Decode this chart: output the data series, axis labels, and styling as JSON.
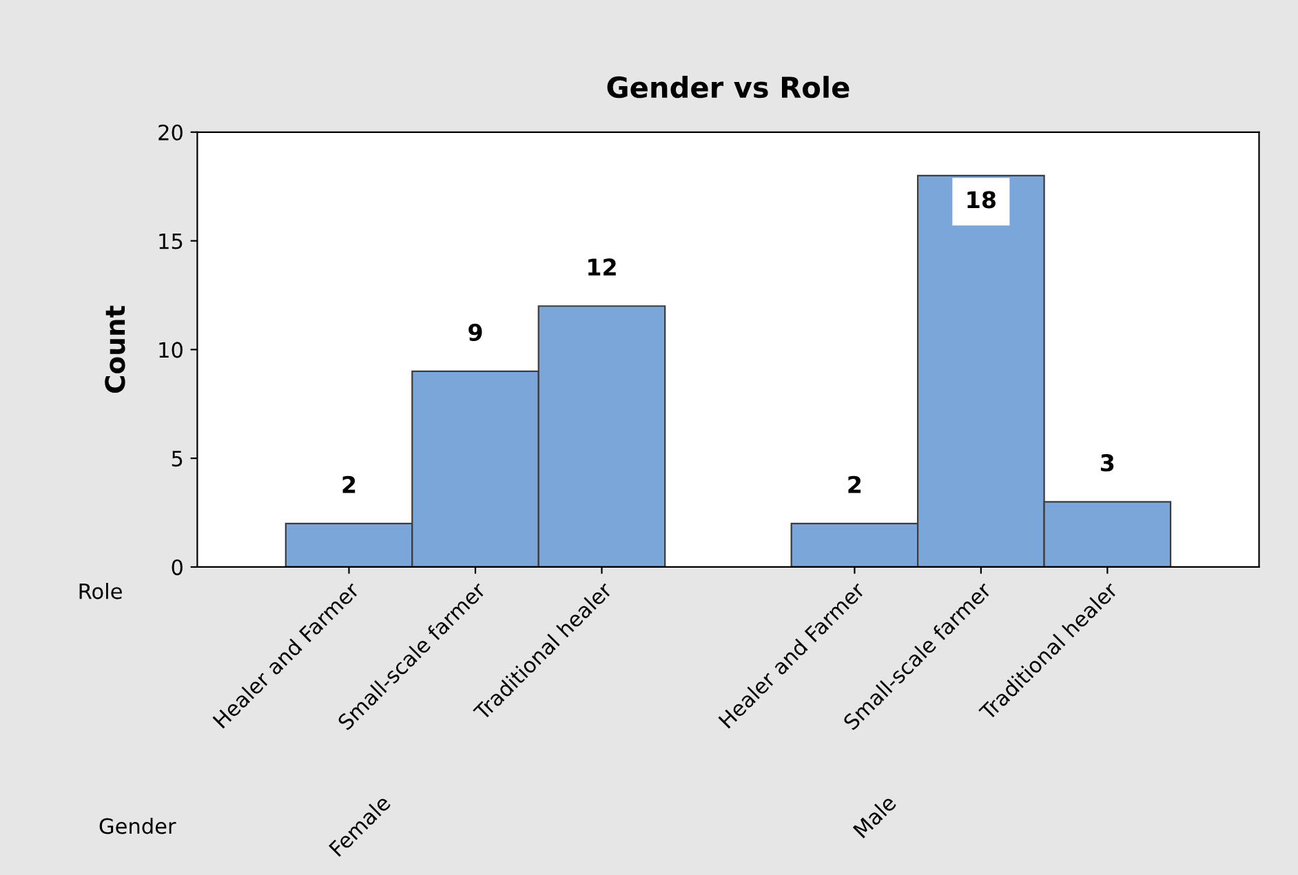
{
  "chart_data": {
    "type": "bar",
    "title": "Gender vs Role",
    "ylabel": "Count",
    "categories": [
      "Healer and Farmer",
      "Small-scale farmer",
      "Traditional healer",
      null,
      "Healer and Farmer",
      "Small-scale farmer",
      "Traditional healer"
    ],
    "values": [
      2,
      9,
      12,
      null,
      2,
      18,
      3
    ],
    "color": "#7ba6d9",
    "ylim": [
      0,
      20
    ],
    "yticks": [
      0,
      5,
      10,
      15,
      20
    ],
    "data_labels": true,
    "grid": false,
    "annotations": [
      "Role",
      "Gender",
      "Female",
      "Male"
    ]
  }
}
